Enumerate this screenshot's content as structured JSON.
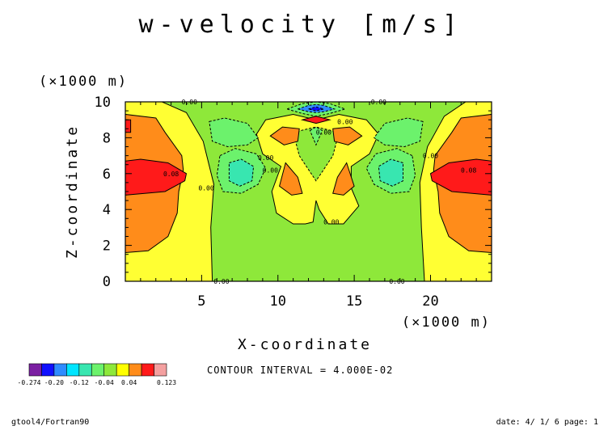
{
  "chart_data": {
    "type": "heatmap",
    "title": "w-velocity [m/s]",
    "xlabel": "X-coordinate",
    "ylabel": "Z-coordinate",
    "x_unit": "(×1000 m)",
    "y_unit": "(×1000 m)",
    "xlim": [
      0,
      24
    ],
    "ylim": [
      0,
      10
    ],
    "xticks": [
      5,
      10,
      15,
      20
    ],
    "yticks": [
      0,
      2,
      4,
      6,
      8,
      10
    ],
    "contour_interval_text": "CONTOUR INTERVAL = 4.000E-02",
    "contour_labels": [
      {
        "text": "0.00",
        "x": 4.2,
        "y": 10.0
      },
      {
        "text": "0.00",
        "x": 16.6,
        "y": 10.0
      },
      {
        "text": "0.00",
        "x": 14.4,
        "y": 8.9
      },
      {
        "text": "0.00",
        "x": 13.0,
        "y": 8.3
      },
      {
        "text": "0.00",
        "x": 9.2,
        "y": 6.9
      },
      {
        "text": "0.00",
        "x": 9.5,
        "y": 6.2
      },
      {
        "text": "0.00",
        "x": 5.3,
        "y": 5.2
      },
      {
        "text": "0.00",
        "x": 13.5,
        "y": 3.3
      },
      {
        "text": "0.00",
        "x": 20.0,
        "y": 7.0
      },
      {
        "text": "0.08",
        "x": 3.0,
        "y": 6.0
      },
      {
        "text": "0.08",
        "x": 22.5,
        "y": 6.2
      },
      {
        "text": "0.00",
        "x": 6.3,
        "y": 0.0
      },
      {
        "text": "0.00",
        "x": 17.8,
        "y": 0.0
      }
    ],
    "colorbar": {
      "min": -0.274,
      "max": 0.123,
      "tick_labels": [
        "-0.274",
        "-0.20",
        "-0.12",
        "-0.04",
        "0.04",
        "0.123"
      ],
      "level_colors": [
        "#7b1fa2",
        "#1010ff",
        "#2f8cff",
        "#00e5ff",
        "#38e6b0",
        "#6cf26c",
        "#8ee83a",
        "#ffff00",
        "#ff8c1a",
        "#ff1a1a",
        "#f4a0a0"
      ]
    },
    "field_colors": {
      "yellow": "#ffff33",
      "green": "#8ee83a",
      "green_inner": "#6cf26c",
      "cyan": "#38e6b0",
      "orange": "#ff8c1a",
      "red": "#ff1a1a",
      "blue": "#1010ff",
      "light_blue": "#2f8cff",
      "aqua": "#00e5ff"
    }
  },
  "footer": {
    "left": "gtool4/Fortran90",
    "right": "date: 4/ 1/ 6 page: 1"
  }
}
